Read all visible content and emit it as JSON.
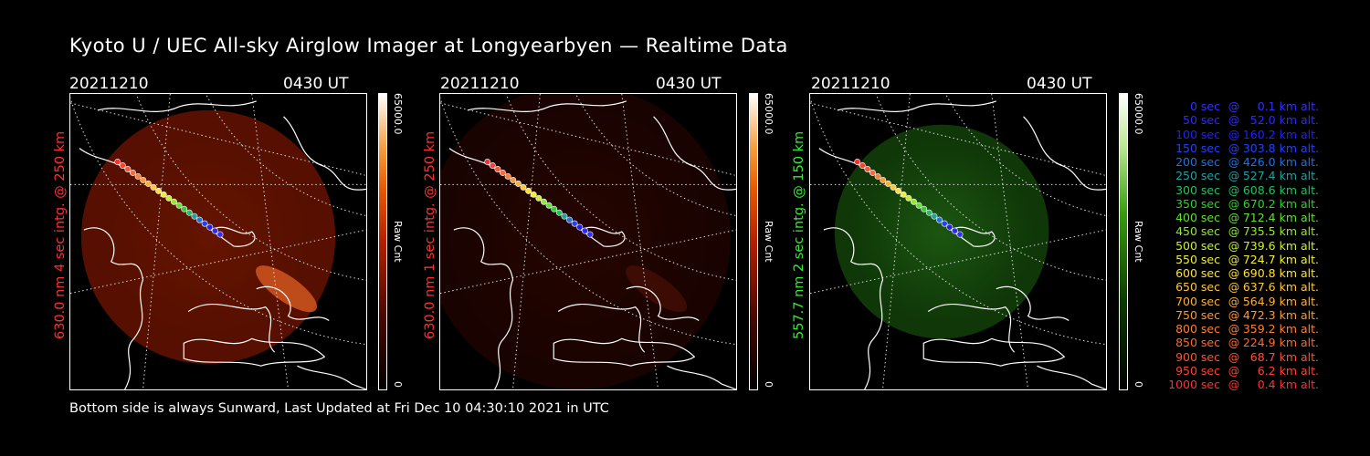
{
  "title": "Kyoto U / UEC All-sky Airglow Imager at Longyearbyen — Realtime Data",
  "footer": "Bottom side is always Sunward, Last Updated at Fri Dec 10 04:30:10 2021 in UTC",
  "panels": [
    {
      "date": "20211210",
      "time": "0430 UT",
      "side_label": "630.0 nm 4 sec intg. @ 250 km",
      "label_color": "#ff3030",
      "colorbar_max": "65000.0",
      "colorbar_min": "0",
      "colorbar_unit": "Raw Cnt",
      "glow": "red",
      "intensity": "strong"
    },
    {
      "date": "20211210",
      "time": "0430 UT",
      "side_label": "630.0 nm 1 sec intg. @ 250 km",
      "label_color": "#ff3030",
      "colorbar_max": "65000.0",
      "colorbar_min": "0",
      "colorbar_unit": "Raw Cnt",
      "glow": "red",
      "intensity": "faint"
    },
    {
      "date": "20211210",
      "time": "0430 UT",
      "side_label": "557.7 nm 2 sec intg. @ 150 km",
      "label_color": "#33ee33",
      "colorbar_max": "65000.0",
      "colorbar_min": "0",
      "colorbar_unit": "Raw Cnt",
      "glow": "green",
      "intensity": "medium"
    }
  ],
  "legend": [
    {
      "sec": "0 sec",
      "at": "@",
      "alt": "0.1 km alt.",
      "color": "#3030ff"
    },
    {
      "sec": "50 sec",
      "at": "@",
      "alt": "52.0 km alt.",
      "color": "#2a2aff"
    },
    {
      "sec": "100 sec",
      "at": "@",
      "alt": "160.2 km alt.",
      "color": "#2020ff"
    },
    {
      "sec": "150 sec",
      "at": "@",
      "alt": "303.8 km alt.",
      "color": "#2040ff"
    },
    {
      "sec": "200 sec",
      "at": "@",
      "alt": "426.0 km alt.",
      "color": "#2070e0"
    },
    {
      "sec": "250 sec",
      "at": "@",
      "alt": "527.4 km alt.",
      "color": "#20a0a0"
    },
    {
      "sec": "300 sec",
      "at": "@",
      "alt": "608.6 km alt.",
      "color": "#20c060"
    },
    {
      "sec": "350 sec",
      "at": "@",
      "alt": "670.2 km alt.",
      "color": "#30d030"
    },
    {
      "sec": "400 sec",
      "at": "@",
      "alt": "712.4 km alt.",
      "color": "#60e030"
    },
    {
      "sec": "450 sec",
      "at": "@",
      "alt": "735.5 km alt.",
      "color": "#90e830"
    },
    {
      "sec": "500 sec",
      "at": "@",
      "alt": "739.6 km alt.",
      "color": "#c8f030"
    },
    {
      "sec": "550 sec",
      "at": "@",
      "alt": "724.7 km alt.",
      "color": "#f0f030"
    },
    {
      "sec": "600 sec",
      "at": "@",
      "alt": "690.8 km alt.",
      "color": "#ffe030"
    },
    {
      "sec": "650 sec",
      "at": "@",
      "alt": "637.6 km alt.",
      "color": "#ffc830"
    },
    {
      "sec": "700 sec",
      "at": "@",
      "alt": "564.9 km alt.",
      "color": "#ffb030"
    },
    {
      "sec": "750 sec",
      "at": "@",
      "alt": "472.3 km alt.",
      "color": "#ff9830"
    },
    {
      "sec": "800 sec",
      "at": "@",
      "alt": "359.2 km alt.",
      "color": "#ff8030"
    },
    {
      "sec": "850 sec",
      "at": "@",
      "alt": "224.9 km alt.",
      "color": "#ff6830"
    },
    {
      "sec": "900 sec",
      "at": "@",
      "alt": "68.7 km alt.",
      "color": "#ff5030"
    },
    {
      "sec": "950 sec",
      "at": "@",
      "alt": "6.2 km alt.",
      "color": "#ff4030"
    },
    {
      "sec": "1000 sec",
      "at": "@",
      "alt": "0.4 km alt.",
      "color": "#ff3030"
    }
  ]
}
